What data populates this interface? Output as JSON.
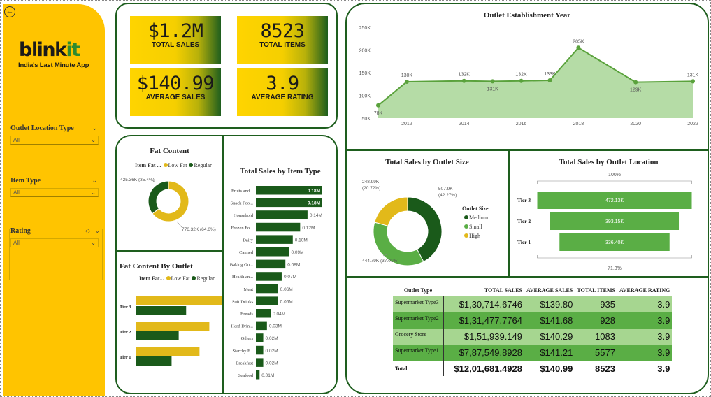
{
  "sidebar": {
    "brand_a": "blink",
    "brand_b": "it",
    "tagline": "India's Last Minute App",
    "slicers": [
      {
        "label": "Outlet Location Type",
        "value": "All"
      },
      {
        "label": "Item Type",
        "value": "All"
      },
      {
        "label": "Rating",
        "value": "All"
      }
    ],
    "colors": {
      "sidebar": "#ffc400",
      "accent": "#2e8b2e"
    }
  },
  "kpis": [
    {
      "value": "$1.2M",
      "label": "TOTAL SALES"
    },
    {
      "value": "8523",
      "label": "TOTAL ITEMS"
    },
    {
      "value": "$140.99",
      "label": "AVERAGE SALES"
    },
    {
      "value": "3.9",
      "label": "AVERAGE RATING"
    }
  ],
  "panels": {
    "fat_content": {
      "title": "Fat Content",
      "legend_title": "Item Fat ...",
      "legend": [
        "Low Fat",
        "Regular"
      ]
    },
    "fat_by_outlet": {
      "title": "Fat Content By Outlet",
      "legend_title": "Item Fat...",
      "legend": [
        "Low Fat",
        "Regular"
      ]
    },
    "item_type": {
      "title": "Total Sales by Item Type"
    },
    "outlet_size": {
      "title": "Total Sales by Outlet Size",
      "legend_title": "Outlet Size",
      "legend": [
        "Medium",
        "Small",
        "High"
      ]
    },
    "outlet_location": {
      "title": "Total Sales by Outlet Location",
      "top_pct": "100%",
      "bottom_pct": "71.3%"
    },
    "year": {
      "title": "Outlet Establishment Year"
    }
  },
  "chart_data": [
    {
      "type": "area",
      "title": "Outlet Establishment Year",
      "x": [
        2011,
        2012,
        2014,
        2015,
        2016,
        2017,
        2018,
        2020,
        2022
      ],
      "values": [
        78,
        130,
        132,
        131,
        132,
        133,
        205,
        129,
        131
      ],
      "value_labels": [
        "78K",
        "130K",
        "132K",
        "131K",
        "132K",
        "133K",
        "205K",
        "129K",
        "131K"
      ],
      "x_ticks": [
        "2012",
        "2014",
        "2016",
        "2018",
        "2020",
        "2022"
      ],
      "y_ticks": [
        "50K",
        "100K",
        "150K",
        "200K",
        "250K"
      ],
      "ylim": [
        50,
        250
      ],
      "color": "#5aa23c"
    },
    {
      "type": "pie",
      "title": "Fat Content",
      "categories": [
        "Low Fat",
        "Regular"
      ],
      "values": [
        776.32,
        425.36
      ],
      "labels": [
        "776.32K (64.6%)",
        "425.36K (35.4%)"
      ],
      "colors": [
        "#e2b91a",
        "#1a5a1a"
      ]
    },
    {
      "type": "bar",
      "title": "Total Sales by Item Type",
      "categories": [
        "Fruits and...",
        "Snack Foo...",
        "Household",
        "Frozen Fo...",
        "Dairy",
        "Canned",
        "Baking Go...",
        "Health an...",
        "Meat",
        "Soft Drinks",
        "Breads",
        "Hard Drin...",
        "Others",
        "Starchy F...",
        "Breakfast",
        "Seafood"
      ],
      "values": [
        0.18,
        0.18,
        0.14,
        0.12,
        0.1,
        0.09,
        0.08,
        0.07,
        0.06,
        0.06,
        0.04,
        0.03,
        0.02,
        0.02,
        0.02,
        0.01
      ],
      "labels": [
        "0.18M",
        "0.18M",
        "0.14M",
        "0.12M",
        "0.10M",
        "0.09M",
        "0.08M",
        "0.07M",
        "0.06M",
        "0.06M",
        "0.04M",
        "0.03M",
        "0.02M",
        "0.02M",
        "0.02M",
        "0.01M"
      ],
      "color": "#1a5a1a"
    },
    {
      "type": "bar",
      "title": "Fat Content By Outlet",
      "categories": [
        "Tier 3",
        "Tier 2",
        "Tier 1"
      ],
      "series": [
        {
          "name": "Low Fat",
          "values": [
            302,
            248,
            215
          ],
          "color": "#e2b91a"
        },
        {
          "name": "Regular",
          "values": [
            170,
            145,
            121
          ],
          "color": "#1a5a1a"
        }
      ]
    },
    {
      "type": "pie",
      "title": "Total Sales by Outlet Size",
      "categories": [
        "Medium",
        "Small",
        "High"
      ],
      "values": [
        507.9,
        444.79,
        248.99
      ],
      "labels": [
        "507.9K\n(42.27%)",
        "444.79K (37.01%)",
        "248.99K\n(20.72%)"
      ],
      "colors": [
        "#1a5a1a",
        "#5aae45",
        "#e2b91a"
      ]
    },
    {
      "type": "bar",
      "title": "Total Sales by Outlet Location",
      "categories": [
        "Tier 3",
        "Tier 2",
        "Tier 1"
      ],
      "values": [
        472.13,
        393.15,
        336.4
      ],
      "labels": [
        "472.13K",
        "393.15K",
        "336.40K"
      ],
      "color": "#5aae45"
    },
    {
      "type": "table",
      "columns": [
        "Outlet Type",
        "TOTAL SALES",
        "AVERAGE SALES",
        "TOTAL ITEMS",
        "AVERAGE RATING"
      ],
      "rows": [
        [
          "Supermarket Type3",
          "$1,30,714.6746",
          "$139.80",
          "935",
          "3.9"
        ],
        [
          "Supermarket Type2",
          "$1,31,477.7764",
          "$141.68",
          "928",
          "3.9"
        ],
        [
          "Grocery Store",
          "$1,51,939.149",
          "$140.29",
          "1083",
          "3.9"
        ],
        [
          "Supermarket Type1",
          "$7,87,549.8928",
          "$141.21",
          "5577",
          "3.9"
        ]
      ],
      "total": [
        "Total",
        "$12,01,681.4928",
        "$140.99",
        "8523",
        "3.9"
      ]
    }
  ]
}
